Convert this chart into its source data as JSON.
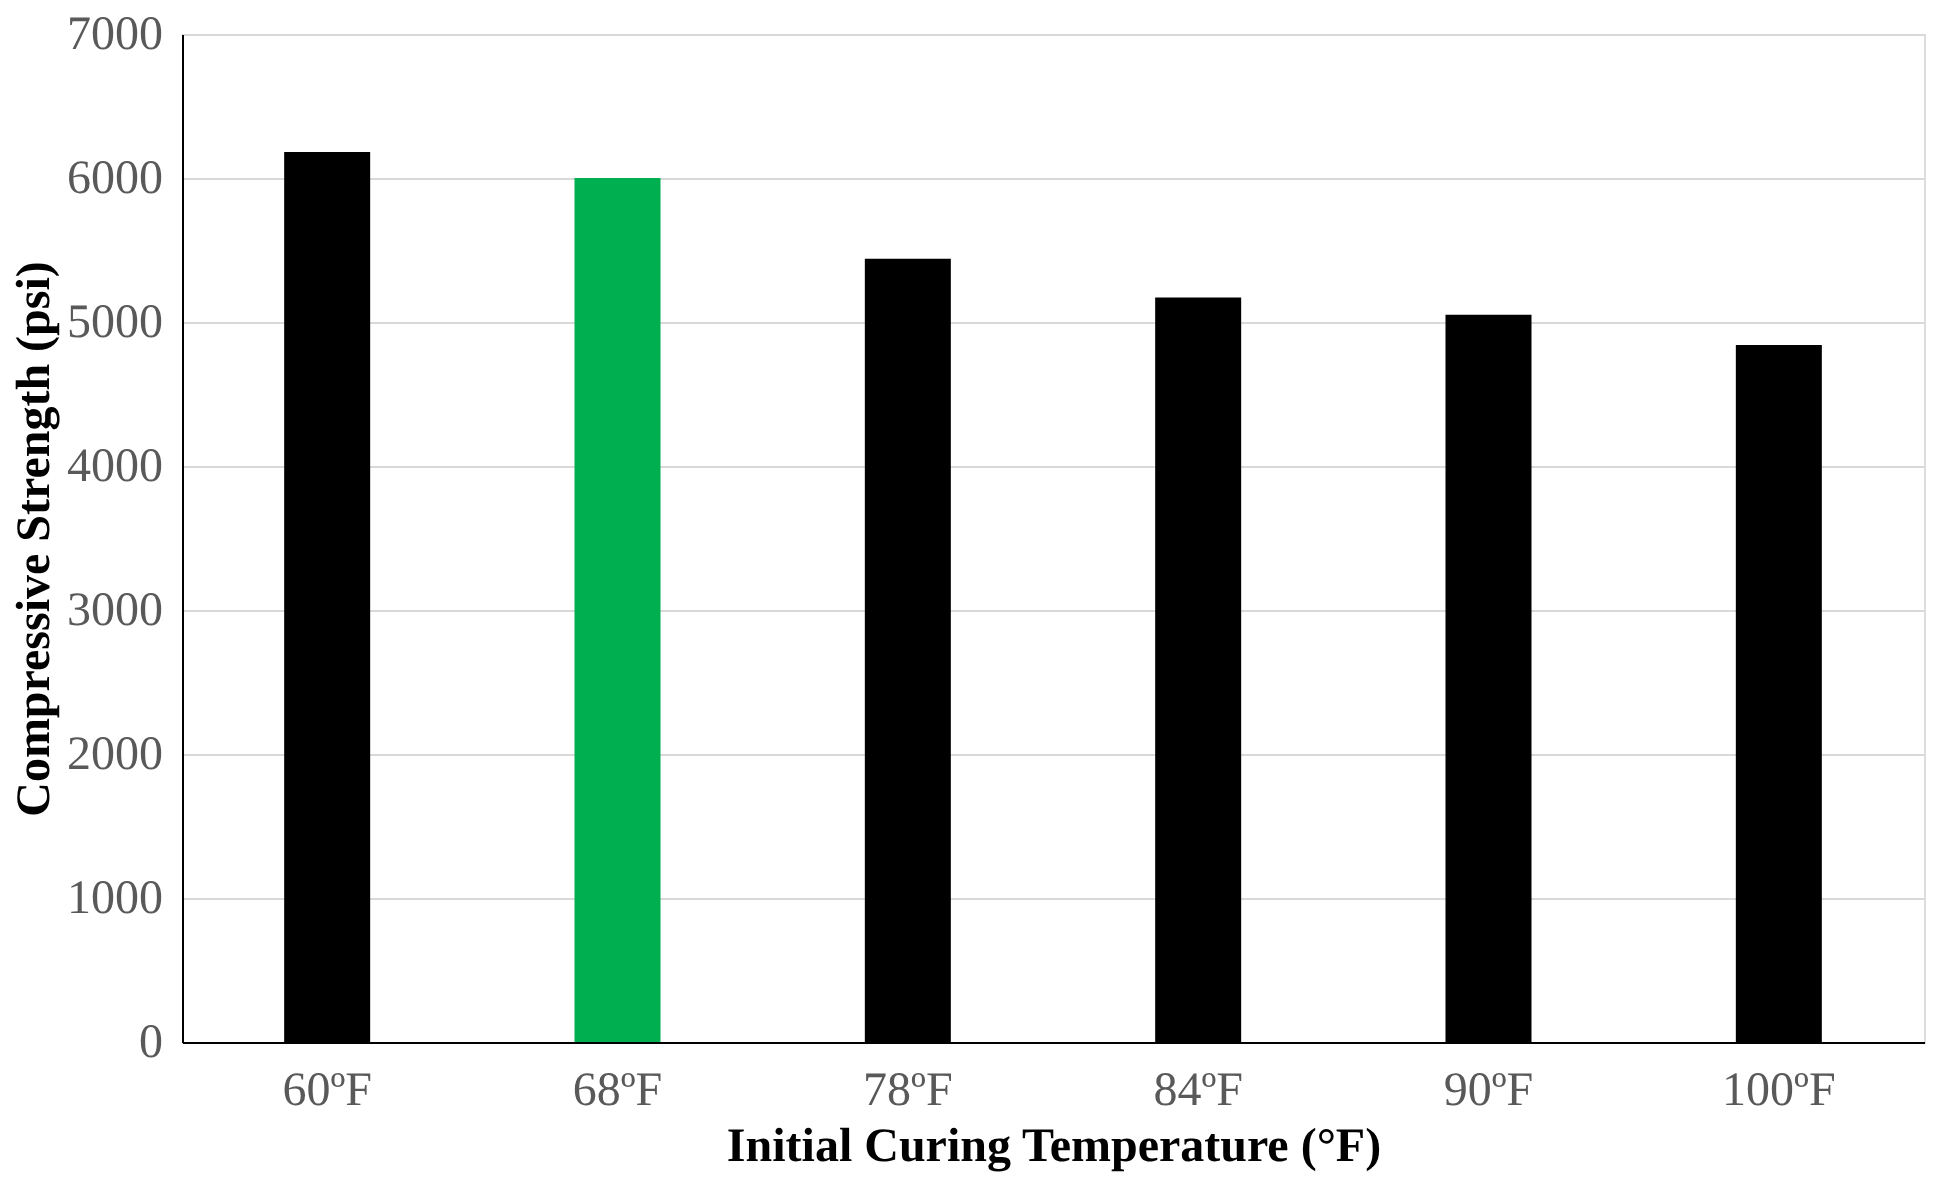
{
  "chart_data": {
    "type": "bar",
    "xlabel": "Initial Curing Temperature (°F)",
    "ylabel": "Compressive Strength (psi)",
    "categories": [
      "60ºF",
      "68ºF",
      "78ºF",
      "84ºF",
      "90ºF",
      "100ºF"
    ],
    "values": [
      6180,
      6000,
      5440,
      5170,
      5050,
      4840
    ],
    "colors": [
      "#000000",
      "#00b050",
      "#000000",
      "#000000",
      "#000000",
      "#000000"
    ],
    "ylim": [
      0,
      7000
    ],
    "yticks": [
      0,
      1000,
      2000,
      3000,
      4000,
      5000,
      6000,
      7000
    ],
    "grid": "y"
  }
}
